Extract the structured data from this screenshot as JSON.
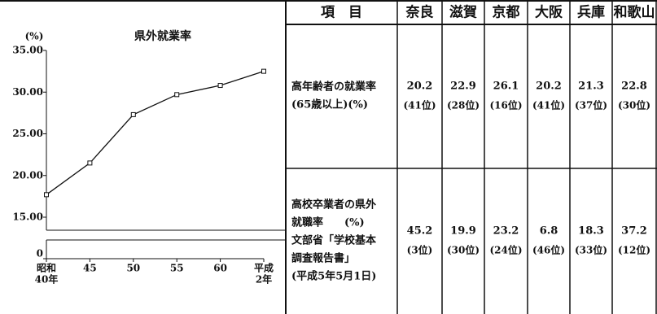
{
  "chart_data": {
    "type": "line",
    "title": "県外就業率",
    "y_label": "(%)",
    "categories": [
      [
        "昭和",
        "40年"
      ],
      "45",
      "50",
      "55",
      "60",
      [
        "平成",
        "2年"
      ]
    ],
    "values": [
      17.7,
      21.5,
      27.3,
      29.7,
      30.8,
      32.5
    ],
    "color": "#111111",
    "ylim": [
      15,
      35
    ],
    "yticks": [
      {
        "value": 15,
        "label": "15.00"
      },
      {
        "value": 20,
        "label": "20.00"
      },
      {
        "value": 25,
        "label": "25.00"
      },
      {
        "value": 30,
        "label": "30.00"
      },
      {
        "value": 35,
        "label": "35.00"
      }
    ],
    "break_ticks": [
      0
    ]
  },
  "table": {
    "header": [
      "項　目",
      "奈良",
      "滋賀",
      "京都",
      "大阪",
      "兵庫",
      "和歌山"
    ],
    "rows": [
      {
        "label": [
          "高年齢者の就業率",
          "(65歳以上)(%)"
        ],
        "values": [
          20.2,
          22.9,
          26.1,
          20.2,
          21.3,
          22.8
        ],
        "ranks": [
          "(41位)",
          "(28位)",
          "(16位)",
          "(41位)",
          "(37位)",
          "(30位)"
        ]
      },
      {
        "label": [
          "高校卒業者の県外",
          "就職率　　(%)",
          "文部省「学校基本",
          "調査報告書」",
          "(平成5年5月1日)"
        ],
        "values": [
          45.2,
          19.9,
          23.2,
          6.8,
          18.3,
          37.2
        ],
        "ranks": [
          "(3位)",
          "(30位)",
          "(24位)",
          "(46位)",
          "(33位)",
          "(12位)"
        ]
      }
    ]
  }
}
